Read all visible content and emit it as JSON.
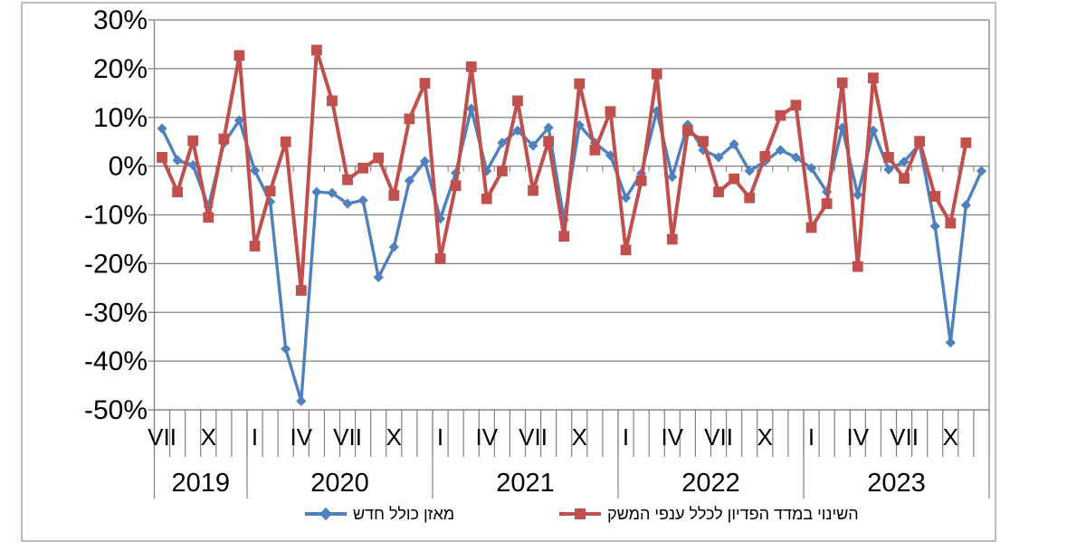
{
  "chart_data": {
    "type": "line",
    "title": "",
    "grid": true,
    "legend_position": "bottom",
    "ylim": [
      -50,
      30
    ],
    "ytick_step": 10,
    "ytick_labels": [
      "30%",
      "20%",
      "10%",
      "0%",
      "-10%",
      "-20%",
      "-30%",
      "-40%",
      "-50%"
    ],
    "x_unit": "month",
    "n_months": 54,
    "x_month_tick_labels": [
      "VII",
      "X",
      "I",
      "IV",
      "VII",
      "X",
      "I",
      "IV",
      "VII",
      "X",
      "I",
      "IV",
      "VII",
      "X",
      "I",
      "IV",
      "VII",
      "X"
    ],
    "x_month_tick_positions": [
      0,
      3,
      6,
      9,
      12,
      15,
      18,
      21,
      24,
      27,
      30,
      33,
      36,
      39,
      42,
      45,
      48,
      51
    ],
    "years": [
      {
        "label": "2019",
        "start": 0,
        "count": 6
      },
      {
        "label": "2020",
        "start": 6,
        "count": 12
      },
      {
        "label": "2021",
        "start": 18,
        "count": 12
      },
      {
        "label": "2022",
        "start": 30,
        "count": 12
      },
      {
        "label": "2023",
        "start": 42,
        "count": 12
      }
    ],
    "series": [
      {
        "name": "מאזן כולל חדש",
        "color": "#4F81BD",
        "marker": "diamond",
        "values": [
          7.7,
          1.2,
          0.2,
          -8.3,
          4.7,
          9.4,
          -0.9,
          -7.3,
          -37.5,
          -48.2,
          -5.3,
          -5.5,
          -7.7,
          -7.0,
          -22.8,
          -16.6,
          -3.0,
          1.0,
          -10.8,
          -1.4,
          11.8,
          -1.0,
          4.8,
          7.3,
          4.2,
          7.9,
          -11.0,
          8.4,
          4.8,
          2.2,
          -6.5,
          -1.5,
          11.3,
          -2.2,
          8.5,
          3.3,
          1.8,
          4.5,
          -1.0,
          1.0,
          3.3,
          1.8,
          -0.4,
          -5.3,
          7.9,
          -5.9,
          7.3,
          -0.7,
          0.9,
          4.5,
          -12.3,
          -36.2,
          -8.0,
          -1.0
        ]
      },
      {
        "name": "השינוי במדד הפדיון לכלל ענפי המשק",
        "color": "#C0504D",
        "marker": "square",
        "values": [
          1.8,
          -5.3,
          5.2,
          -10.5,
          5.6,
          22.7,
          -16.4,
          -5.1,
          5.0,
          -25.5,
          23.8,
          13.4,
          -2.8,
          -0.4,
          1.7,
          -6.0,
          9.7,
          17.0,
          -19.0,
          -4.0,
          20.4,
          -6.7,
          -1.0,
          13.4,
          -5.0,
          5.1,
          -14.4,
          16.9,
          3.3,
          11.2,
          -17.2,
          -3.0,
          18.9,
          -15.0,
          7.3,
          5.1,
          -5.3,
          -2.6,
          -6.5,
          2.0,
          10.4,
          12.5,
          -12.6,
          -7.7,
          17.1,
          -20.6,
          18.1,
          1.8,
          -2.5,
          5.1,
          -6.2,
          -11.7,
          4.8,
          null
        ]
      }
    ],
    "colors": {
      "grid": "#808080",
      "axis": "#808080",
      "frame": "#A6A6A6",
      "text": "#000000",
      "background": "#FFFFFF"
    }
  },
  "legend": {
    "items": [
      {
        "label": "מאזן כולל חדש",
        "color": "#4F81BD",
        "marker": "diamond"
      },
      {
        "label": "השינוי במדד הפדיון לכלל ענפי המשק",
        "color": "#C0504D",
        "marker": "square"
      }
    ]
  }
}
